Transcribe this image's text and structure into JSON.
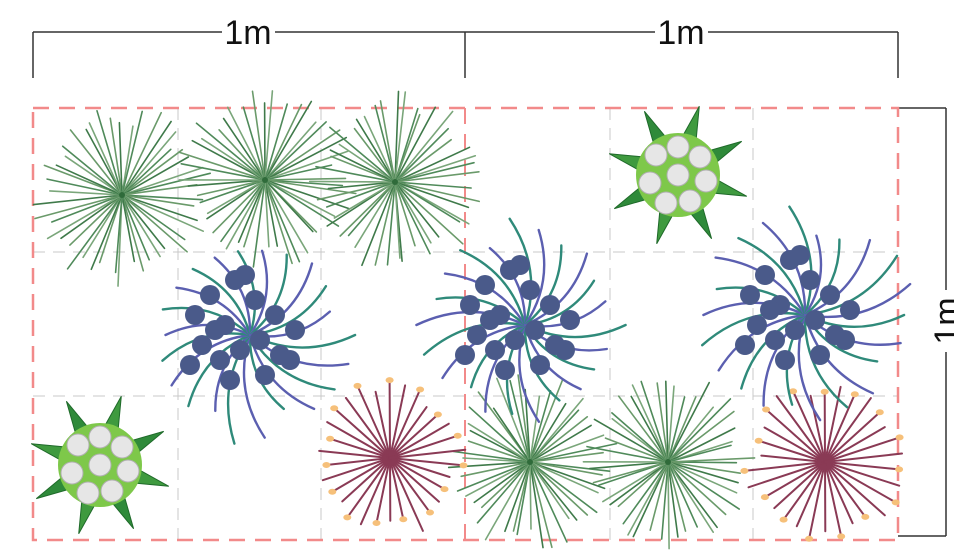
{
  "dimensions": {
    "top_left_label": "1m",
    "top_right_label": "1m",
    "right_label": "1m"
  },
  "colors": {
    "bed_border": "#f28a8a",
    "grid_line": "#c8c8c8",
    "dimension_line": "#333333",
    "grass_stroke": "#4f8a5a",
    "grass_center": "#2f6b3a",
    "blue_leaf": "#5b5fb0",
    "teal_leaf": "#2f8a7a",
    "berry": "#4a5a8a",
    "allium_stem": "#8a3a55",
    "allium_tip": "#f6c07a",
    "rosette_leaf": "#2f8a3a",
    "rosette_light": "#7ec84a",
    "rosette_flower": "#e6e6e6"
  },
  "plants": {
    "grass": [
      {
        "id": "g1"
      },
      {
        "id": "g2"
      },
      {
        "id": "g3"
      },
      {
        "id": "g4"
      },
      {
        "id": "g5"
      }
    ],
    "berry_clump": [
      {
        "id": "b1"
      },
      {
        "id": "b2"
      },
      {
        "id": "b3"
      }
    ],
    "allium": [
      {
        "id": "a1"
      },
      {
        "id": "a2"
      }
    ],
    "rosette": [
      {
        "id": "r1"
      },
      {
        "id": "r2"
      }
    ]
  }
}
